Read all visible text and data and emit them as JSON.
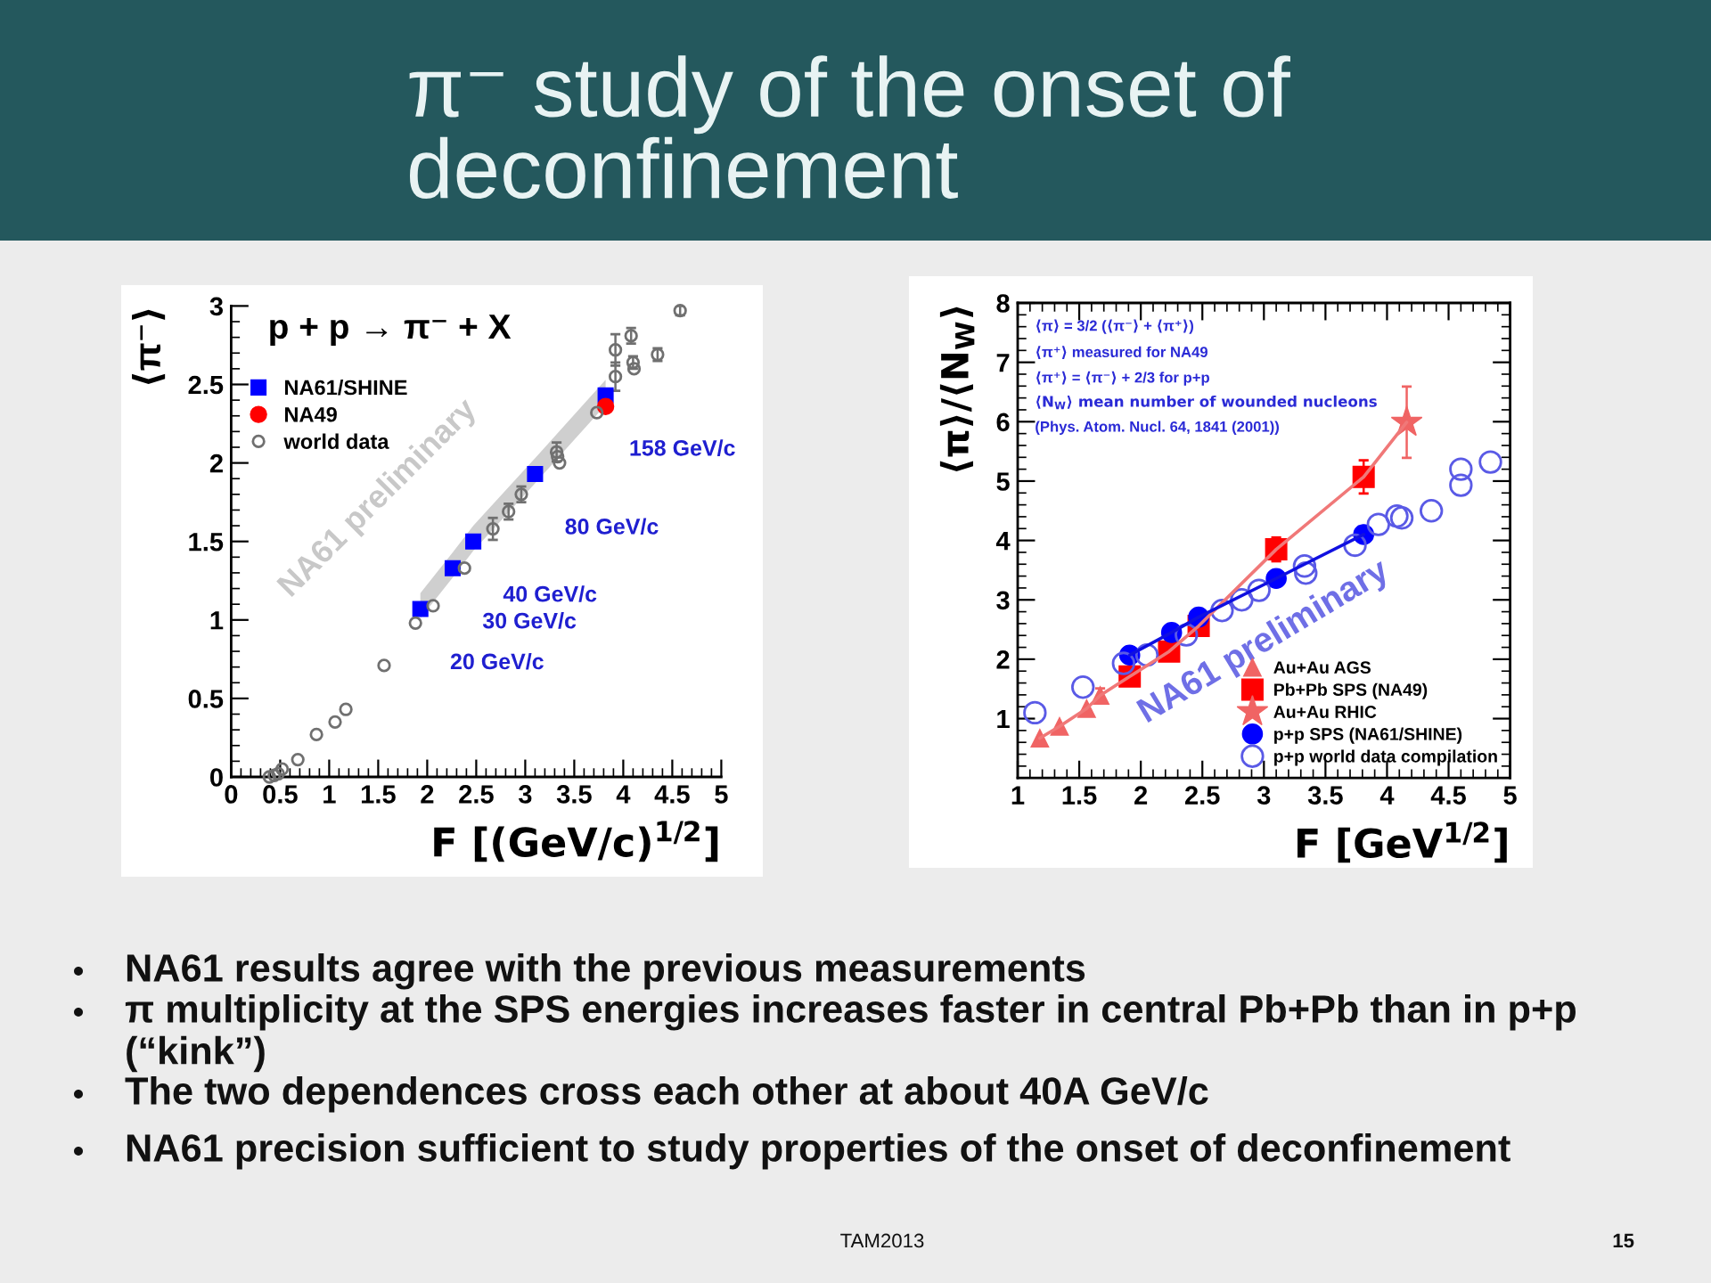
{
  "chart_data": [
    {
      "type": "other",
      "title": "π⁻ study of the onset of deconfinement"
    },
    {
      "type": "scatter",
      "title": "p + p → π⁻ + X",
      "xlabel": "F [(GeV/c)$^{1/2}$]",
      "ylabel": "⟨π⁻⟩",
      "xlim": [
        0,
        5
      ],
      "xticks": [
        0,
        0.5,
        1,
        1.5,
        2,
        2.5,
        3,
        3.5,
        4,
        4.5,
        5
      ],
      "ylim": [
        0,
        3
      ],
      "yticks": [
        0,
        0.5,
        1,
        1.5,
        2,
        2.5,
        3
      ],
      "legend": "top left",
      "series": [
        {
          "name": "NA61/SHINE",
          "color": "#0000ff",
          "marker": "square",
          "x": [
            1.93,
            2.26,
            2.47,
            3.1,
            3.82
          ],
          "values": [
            1.07,
            1.33,
            1.5,
            1.93,
            2.43
          ],
          "lower": [
            1.01,
            1.27,
            1.44,
            1.87,
            2.37
          ],
          "upper": [
            1.17,
            1.43,
            1.6,
            2.03,
            2.53
          ]
        },
        {
          "name": "NA49",
          "color": "#ff0000",
          "marker": "circle",
          "x": [
            3.82
          ],
          "values": [
            2.36
          ]
        },
        {
          "name": "world data",
          "color": "#707070",
          "marker": "circle",
          "x": [
            0.39,
            0.44,
            0.48,
            0.52,
            0.68,
            0.87,
            1.06,
            1.17,
            1.56,
            1.88,
            2.06,
            2.38,
            2.67,
            2.83,
            2.96,
            3.32,
            3.33,
            3.35,
            3.73,
            3.92,
            3.92,
            4.08,
            4.1,
            4.11,
            4.35,
            4.58
          ],
          "values": [
            0.0,
            0.01,
            0.02,
            0.05,
            0.11,
            0.27,
            0.35,
            0.43,
            0.71,
            0.98,
            1.09,
            1.33,
            1.58,
            1.69,
            1.8,
            2.07,
            2.04,
            2.0,
            2.32,
            2.55,
            2.72,
            2.81,
            2.64,
            2.6,
            2.69,
            2.97
          ],
          "errors": [
            null,
            null,
            null,
            null,
            null,
            null,
            null,
            null,
            null,
            null,
            null,
            null,
            0.07,
            0.05,
            0.05,
            0.06,
            null,
            null,
            null,
            0.09,
            0.1,
            0.05,
            0.04,
            null,
            0.04,
            0.03
          ]
        }
      ],
      "annotations": [
        {
          "text": "20 GeV/c",
          "x": 1.93,
          "y": 1.07
        },
        {
          "text": "30 GeV/c",
          "x": 2.26,
          "y": 1.33
        },
        {
          "text": "40 GeV/c",
          "x": 2.47,
          "y": 1.5
        },
        {
          "text": "80 GeV/c",
          "x": 3.1,
          "y": 1.93
        },
        {
          "text": "158 GeV/c",
          "x": 3.82,
          "y": 2.43
        },
        "NA61 preliminary"
      ]
    },
    {
      "type": "scatter",
      "xlabel": "F [GeV$^{1/2}$]",
      "ylabel": "⟨π⟩/⟨N$_{W}$⟩",
      "xlim": [
        1,
        5
      ],
      "xticks": [
        1,
        1.5,
        2,
        2.5,
        3,
        3.5,
        4,
        4.5,
        5
      ],
      "ylim": [
        0,
        8
      ],
      "yticks": [
        1,
        2,
        3,
        4,
        5,
        6,
        7,
        8
      ],
      "legend": "bottom right",
      "series": [
        {
          "type": "line",
          "color": "#f07878",
          "marker": "none",
          "x": [
            1.18,
            1.34,
            1.56,
            1.67,
            1.91,
            2.23,
            2.47,
            3.1,
            3.81,
            4.16
          ],
          "values": [
            0.67,
            0.87,
            1.17,
            1.39,
            1.71,
            2.13,
            2.56,
            3.85,
            5.07,
            5.99
          ]
        },
        {
          "type": "line",
          "color": "#1010e0",
          "marker": "none",
          "x": [
            1.91,
            2.25,
            2.47,
            3.1,
            3.81
          ],
          "values": [
            2.07,
            2.45,
            2.71,
            3.36,
            4.1
          ]
        },
        {
          "name": "Au+Au AGS",
          "color": "#f06464",
          "marker": "triangle",
          "x": [
            1.18,
            1.34,
            1.56,
            1.67
          ],
          "values": [
            0.67,
            0.87,
            1.17,
            1.39
          ],
          "errors": [
            null,
            null,
            null,
            0.12
          ]
        },
        {
          "name": "Pb+Pb SPS (NA49)",
          "color": "#ff0000",
          "marker": "square",
          "x": [
            1.91,
            2.23,
            2.47,
            3.1,
            3.81
          ],
          "values": [
            1.71,
            2.13,
            2.56,
            3.85,
            5.07
          ],
          "errors": [
            null,
            0.1,
            null,
            0.2,
            0.28
          ]
        },
        {
          "name": "Au+Au RHIC",
          "color": "#f06464",
          "marker": "star",
          "x": [
            4.16
          ],
          "values": [
            5.99
          ],
          "errors": [
            0.6
          ]
        },
        {
          "name": "p+p SPS (NA61/SHINE)",
          "color": "#0000ff",
          "marker": "circle",
          "x": [
            1.91,
            2.25,
            2.47,
            3.1,
            3.81
          ],
          "values": [
            2.07,
            2.45,
            2.71,
            3.36,
            4.1
          ]
        },
        {
          "name": "p+p world data compilation",
          "color": "#5a5ae6",
          "marker": "circle",
          "x": [
            1.14,
            1.53,
            1.86,
            2.05,
            2.37,
            2.66,
            2.82,
            2.96,
            3.33,
            3.34,
            3.74,
            3.93,
            4.08,
            4.12,
            4.36,
            4.6,
            4.6,
            4.84
          ],
          "values": [
            1.1,
            1.53,
            1.93,
            2.07,
            2.41,
            2.82,
            3.0,
            3.16,
            3.57,
            3.45,
            3.92,
            4.27,
            4.41,
            4.38,
            4.5,
            5.2,
            4.93,
            5.32
          ]
        }
      ],
      "annotations": [
        "⟨π⟩ = 3/2 (⟨π⁻⟩ + ⟨π⁺⟩)",
        "⟨π⁺⟩ measured for NA49",
        "⟨π⁺⟩ = ⟨π⁻⟩ + 2/3 for p+p",
        "⟨N$_{W}$⟩ mean number of wounded nucleons",
        "(Phys. Atom. Nucl. 64, 1841 (2001))",
        "NA61 preliminary"
      ]
    },
    {
      "type": "other",
      "annotations": [
        "NA61 results agree with the previous measurements",
        "π multiplicity at the SPS energies increases faster in central Pb+Pb than in p+p (“kink”)",
        "The two dependences cross each other at about 40A GeV/c",
        "NA61 precision sufficient to study properties of the onset of deconfinement",
        "TAM2013",
        "15"
      ]
    }
  ]
}
